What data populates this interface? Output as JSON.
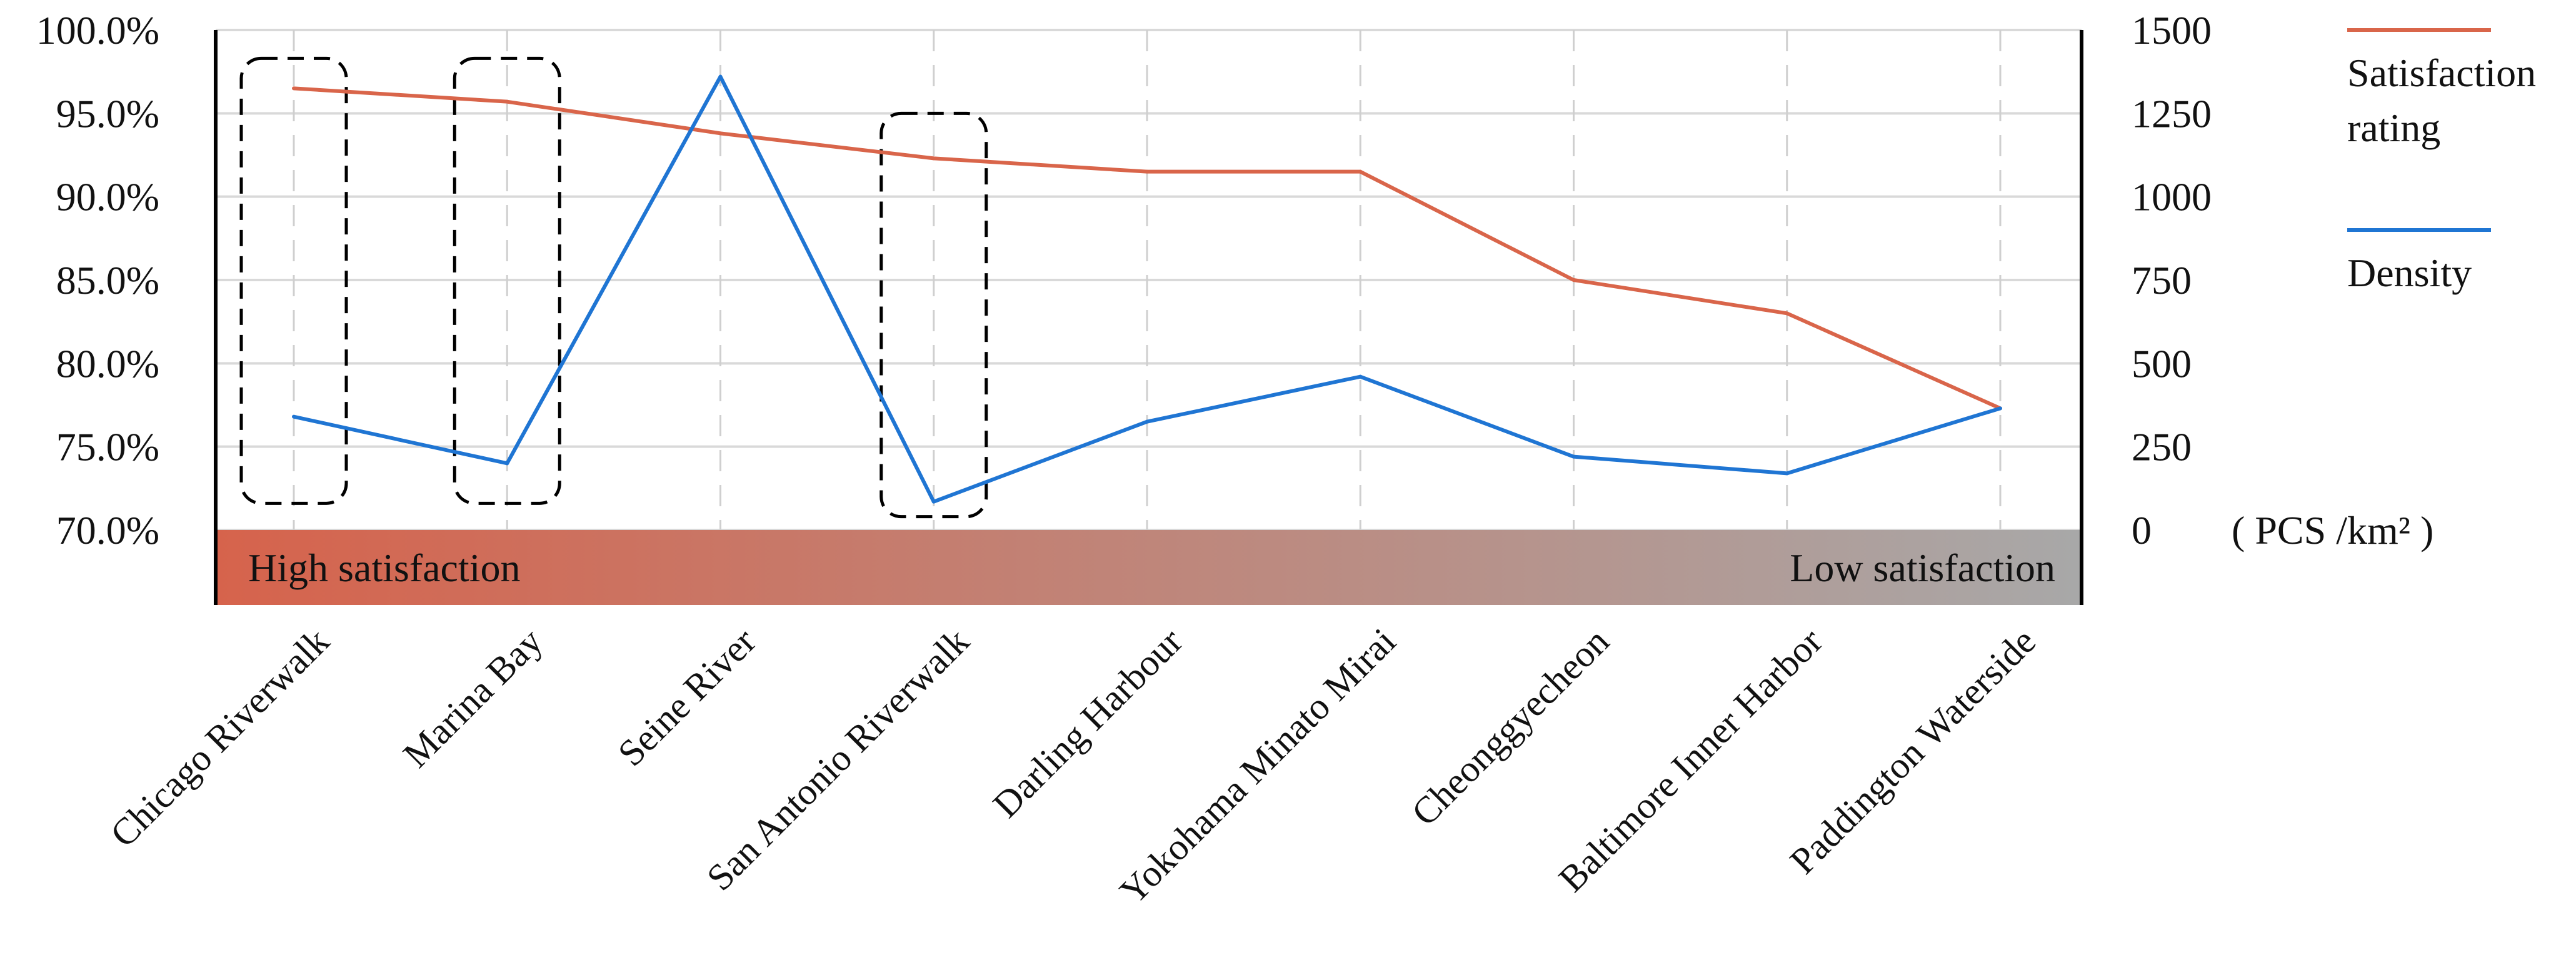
{
  "chart_data": {
    "type": "line",
    "categories": [
      "Chicago Riverwalk",
      "Marina Bay",
      "Seine River",
      "San Antonio Riverwalk",
      "Darling Harbour",
      "Yokohama Minato Mirai",
      "Cheonggyecheon",
      "Baltimore Inner Harbor",
      "Paddington Waterside"
    ],
    "series": [
      {
        "name": "Satisfaction rating",
        "axis": "left",
        "color": "#d9654a",
        "values": [
          96.5,
          95.7,
          93.8,
          92.3,
          91.5,
          91.5,
          85.0,
          83.0,
          77.3
        ]
      },
      {
        "name": "Density",
        "axis": "right",
        "color": "#1f75d3",
        "values": [
          340,
          200,
          1360,
          85,
          325,
          460,
          220,
          170,
          365
        ]
      }
    ],
    "y_left": {
      "range": [
        70,
        100
      ],
      "ticks": [
        "70.0%",
        "75.0%",
        "80.0%",
        "85.0%",
        "90.0%",
        "95.0%",
        "100.0%"
      ]
    },
    "y_right": {
      "range": [
        0,
        1500
      ],
      "ticks": [
        "0",
        "250",
        "500",
        "750",
        "1000",
        "1250",
        "1500"
      ],
      "unit": "( PCS /km² )"
    },
    "band": {
      "left_label": "High satisfaction",
      "right_label": "Low satisfaction",
      "color_start": "#d6634c",
      "color_end": "#a8a8a8"
    },
    "highlighted_categories": [
      "Chicago Riverwalk",
      "Marina Bay",
      "San Antonio Riverwalk"
    ],
    "grid": true,
    "legend_position": "right"
  },
  "legend": {
    "items": [
      {
        "label_lines": [
          "Satisfaction",
          "rating"
        ],
        "color": "#d9654a"
      },
      {
        "label_lines": [
          "Density"
        ],
        "color": "#1f75d3"
      }
    ]
  }
}
